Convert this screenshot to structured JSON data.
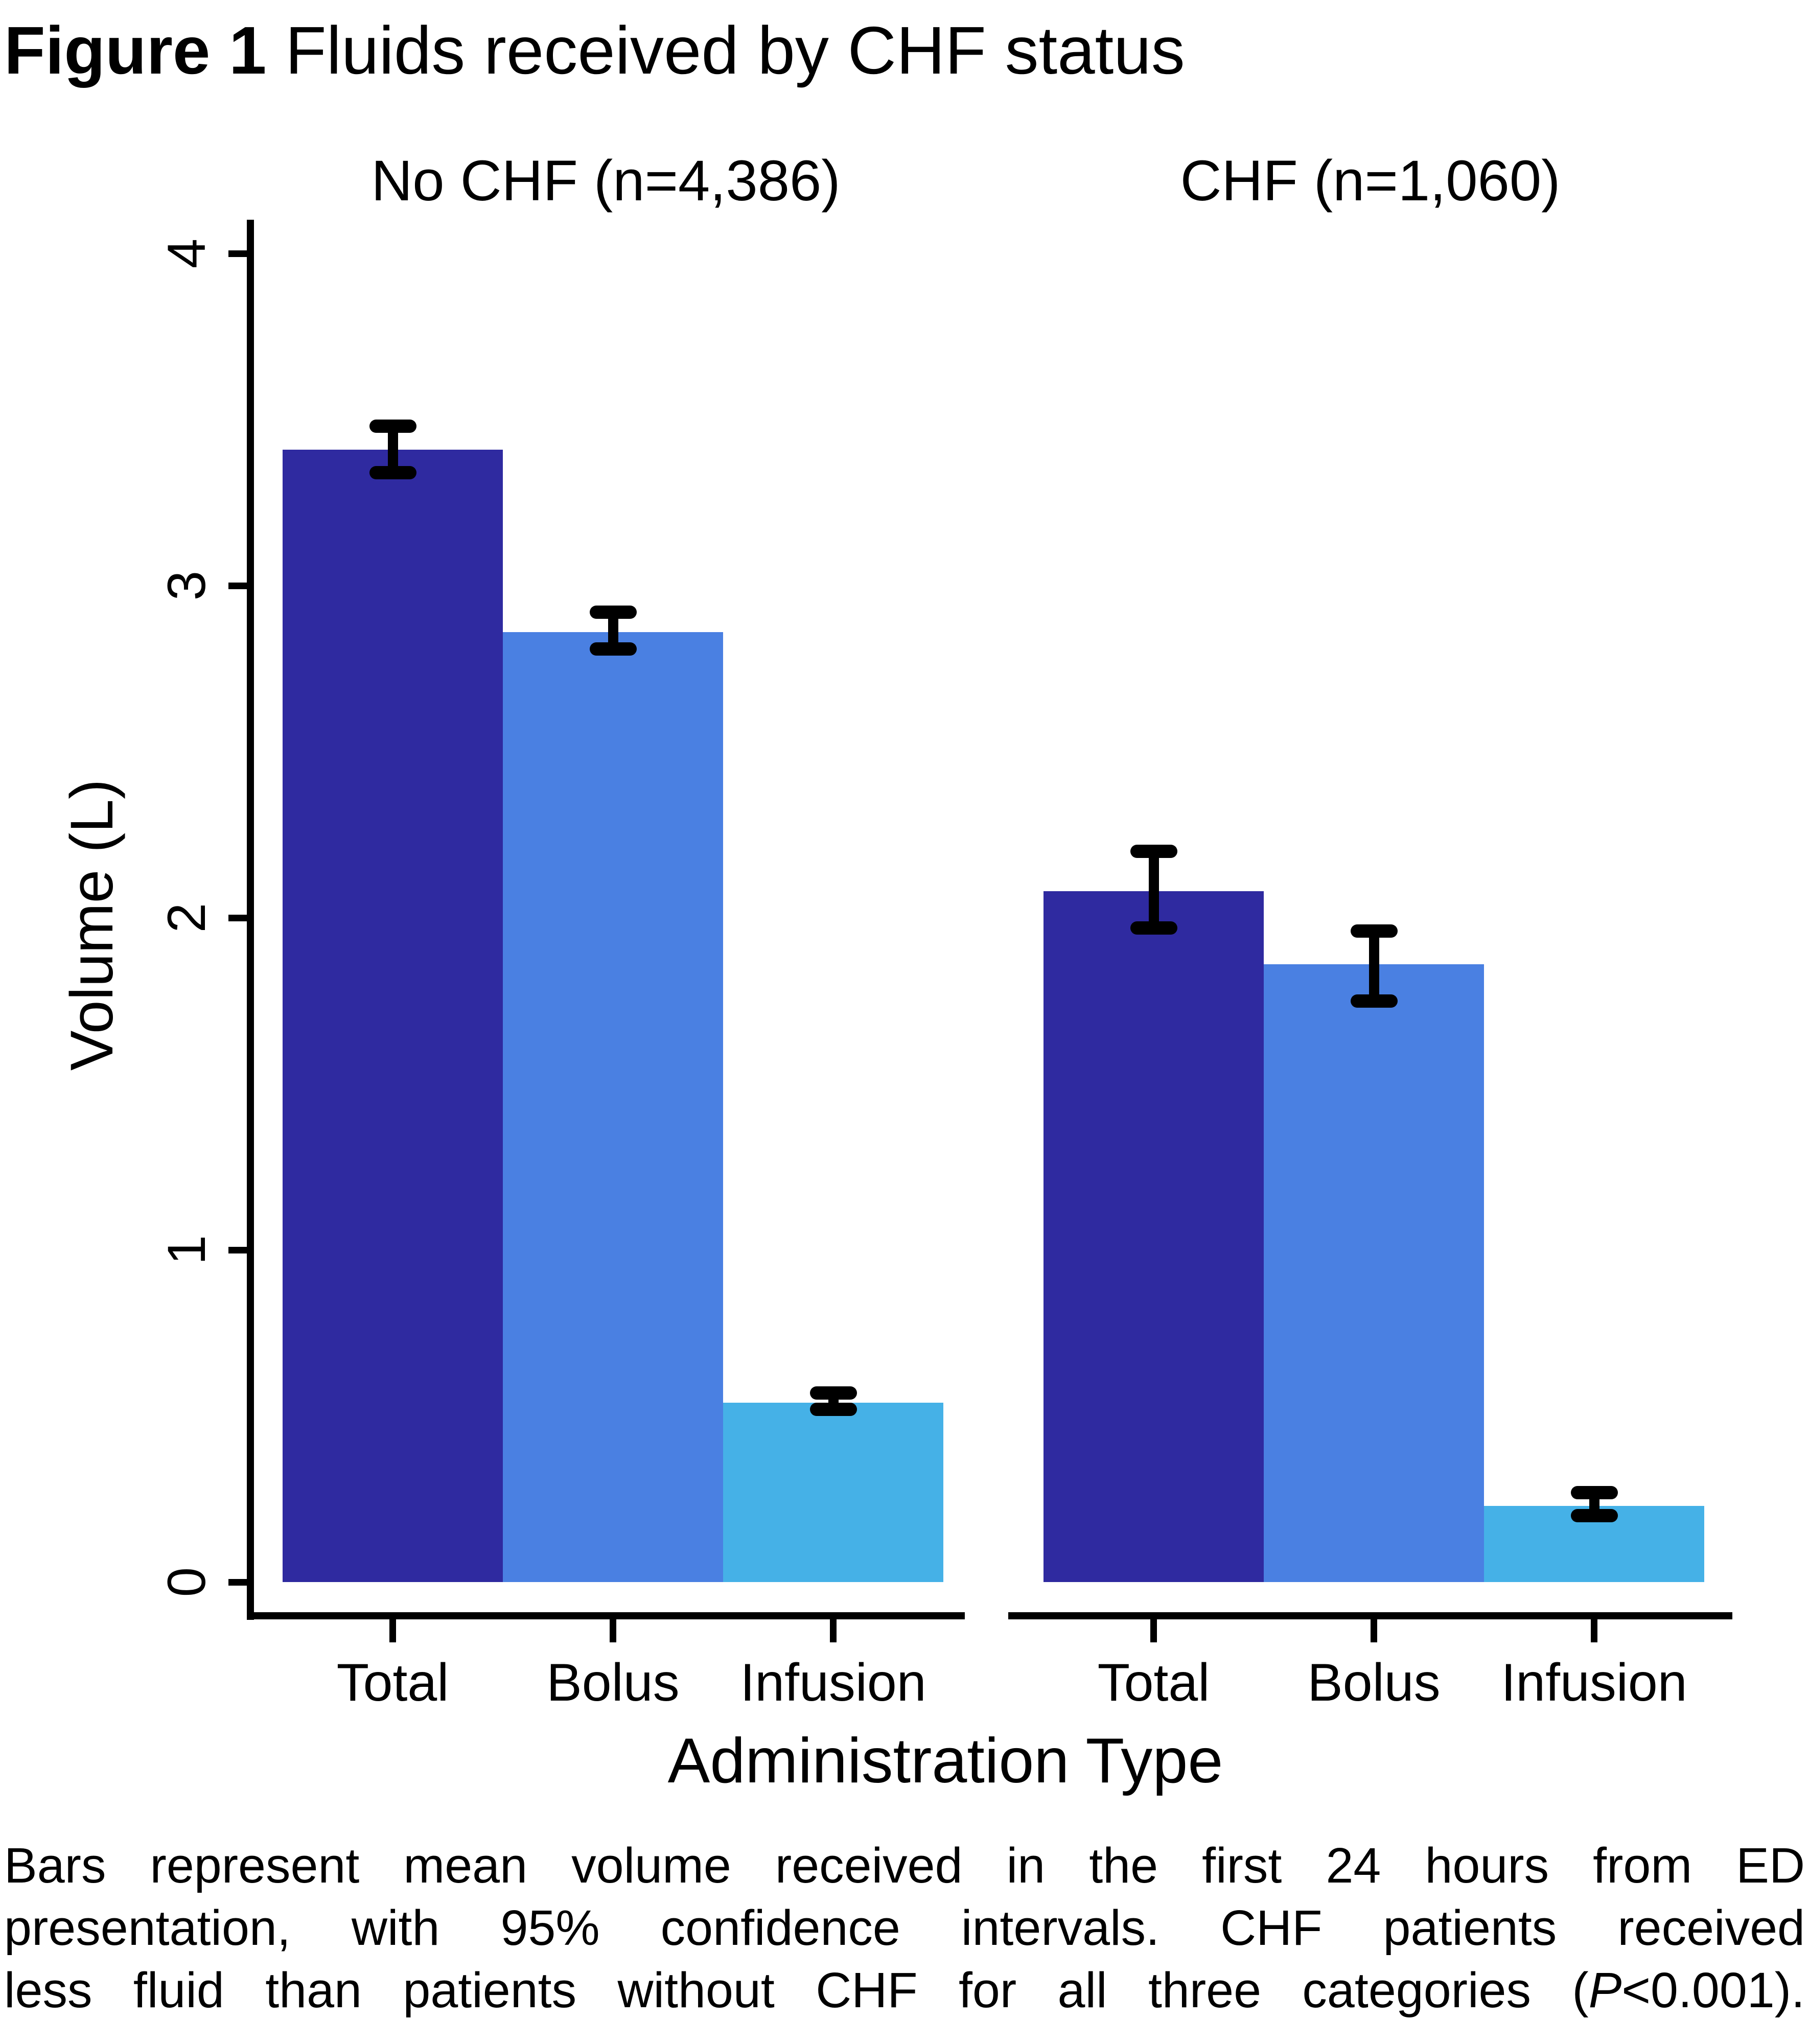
{
  "title": {
    "bold": "Figure 1",
    "rest": " Fluids received by CHF status"
  },
  "y_axis": {
    "label": "Volume (L)",
    "ticks": [
      0,
      1,
      2,
      3,
      4
    ]
  },
  "x_axis": {
    "label": "Administration Type",
    "categories": [
      "Total",
      "Bolus",
      "Infusion"
    ]
  },
  "colors": {
    "axis": "#000000",
    "total_bar": "#2F2AA0",
    "bolus_bar": "#4A80E2",
    "infusion_bar": "#45B1E7"
  },
  "chart_data": {
    "type": "bar",
    "title": "Figure 1 Fluids received by CHF status",
    "xlabel": "Administration Type",
    "ylabel": "Volume (L)",
    "ylim": [
      0,
      4
    ],
    "y_ticks": [
      0,
      1,
      2,
      3,
      4
    ],
    "grid": false,
    "legend": false,
    "error_bars": "95% confidence intervals",
    "categories": [
      "Total",
      "Bolus",
      "Infusion"
    ],
    "bar_colors": {
      "Total": "#2F2AA0",
      "Bolus": "#4A80E2",
      "Infusion": "#45B1E7"
    },
    "panels": [
      {
        "name": "No CHF (n=4,386)",
        "series": [
          {
            "category": "Total",
            "mean": 3.41,
            "ci_low": 3.34,
            "ci_high": 3.48
          },
          {
            "category": "Bolus",
            "mean": 2.86,
            "ci_low": 2.81,
            "ci_high": 2.92
          },
          {
            "category": "Infusion",
            "mean": 0.54,
            "ci_low": 0.52,
            "ci_high": 0.57
          }
        ]
      },
      {
        "name": "CHF (n=1,060)",
        "series": [
          {
            "category": "Total",
            "mean": 2.08,
            "ci_low": 1.97,
            "ci_high": 2.2
          },
          {
            "category": "Bolus",
            "mean": 1.86,
            "ci_low": 1.75,
            "ci_high": 1.96
          },
          {
            "category": "Infusion",
            "mean": 0.23,
            "ci_low": 0.2,
            "ci_high": 0.27
          }
        ]
      }
    ]
  },
  "caption": {
    "line1": "Bars represent mean volume received in the first 24 hours from ED",
    "line2": "presentation, with 95% confidence intervals. CHF patients received",
    "line3_pre": "less fluid than patients without CHF for all three categories (",
    "line3_italic": "P",
    "line3_post": "<0.001)."
  }
}
